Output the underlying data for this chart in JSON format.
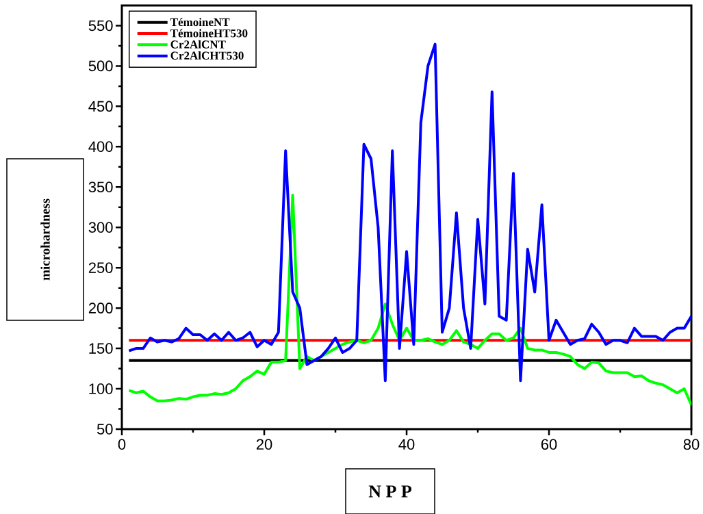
{
  "chart_data": {
    "type": "line",
    "xlabel": "N P P",
    "ylabel": "microhardness",
    "xlim": [
      0,
      80
    ],
    "ylim": [
      50,
      575
    ],
    "xticks": [
      0,
      20,
      40,
      60,
      80
    ],
    "yticks": [
      50,
      100,
      150,
      200,
      250,
      300,
      350,
      400,
      450,
      500,
      550
    ],
    "legend": "top left",
    "grid": false,
    "marker": "none",
    "line_style": "solid",
    "series": [
      {
        "name": "TémoineNT",
        "color": "#000000",
        "x": [
          1,
          80
        ],
        "values": [
          135,
          135
        ]
      },
      {
        "name": "TémoineHT530",
        "color": "#ff0000",
        "x": [
          1,
          80
        ],
        "values": [
          160,
          160
        ]
      },
      {
        "name": "Cr2AlCNT",
        "color": "#00ff00",
        "x": [
          1,
          2,
          3,
          4,
          5,
          6,
          7,
          8,
          9,
          10,
          11,
          12,
          13,
          14,
          15,
          16,
          17,
          18,
          19,
          20,
          21,
          22,
          23,
          24,
          25,
          26,
          27,
          28,
          29,
          30,
          31,
          32,
          33,
          34,
          35,
          36,
          37,
          38,
          39,
          40,
          41,
          42,
          43,
          44,
          45,
          46,
          47,
          48,
          49,
          50,
          51,
          52,
          53,
          54,
          55,
          56,
          57,
          58,
          59,
          60,
          61,
          62,
          63,
          64,
          65,
          66,
          67,
          68,
          69,
          70,
          71,
          72,
          73,
          74,
          75,
          76,
          77,
          78,
          79,
          80
        ],
        "values": [
          98,
          95,
          97,
          90,
          85,
          85,
          86,
          88,
          87,
          90,
          92,
          92,
          94,
          93,
          95,
          100,
          110,
          115,
          122,
          118,
          133,
          133,
          135,
          340,
          125,
          140,
          135,
          140,
          145,
          150,
          155,
          158,
          160,
          157,
          160,
          175,
          205,
          180,
          160,
          175,
          160,
          160,
          162,
          158,
          155,
          160,
          172,
          158,
          155,
          150,
          160,
          168,
          168,
          160,
          163,
          175,
          150,
          148,
          148,
          145,
          145,
          143,
          140,
          130,
          125,
          133,
          132,
          122,
          120,
          120,
          120,
          115,
          116,
          110,
          107,
          105,
          100,
          95,
          100,
          80
        ]
      },
      {
        "name": "Cr2AlCHT530",
        "color": "#0000ff",
        "x": [
          1,
          2,
          3,
          4,
          5,
          6,
          7,
          8,
          9,
          10,
          11,
          12,
          13,
          14,
          15,
          16,
          17,
          18,
          19,
          20,
          21,
          22,
          23,
          24,
          25,
          26,
          27,
          28,
          29,
          30,
          31,
          32,
          33,
          34,
          35,
          36,
          37,
          38,
          39,
          40,
          41,
          42,
          43,
          44,
          45,
          46,
          47,
          48,
          49,
          50,
          51,
          52,
          53,
          54,
          55,
          56,
          57,
          58,
          59,
          60,
          61,
          62,
          63,
          64,
          65,
          66,
          67,
          68,
          69,
          70,
          71,
          72,
          73,
          74,
          75,
          76,
          77,
          78,
          79,
          80
        ],
        "values": [
          147,
          150,
          150,
          163,
          158,
          160,
          158,
          162,
          175,
          167,
          167,
          160,
          168,
          160,
          170,
          160,
          163,
          170,
          152,
          160,
          155,
          170,
          395,
          220,
          200,
          130,
          135,
          140,
          150,
          163,
          145,
          150,
          160,
          403,
          385,
          300,
          110,
          395,
          150,
          270,
          155,
          430,
          500,
          527,
          170,
          200,
          318,
          200,
          150,
          310,
          205,
          468,
          190,
          185,
          367,
          110,
          273,
          220,
          328,
          160,
          185,
          170,
          155,
          160,
          162,
          180,
          170,
          155,
          160,
          160,
          157,
          175,
          165,
          165,
          165,
          160,
          170,
          175,
          175,
          190
        ]
      }
    ]
  }
}
